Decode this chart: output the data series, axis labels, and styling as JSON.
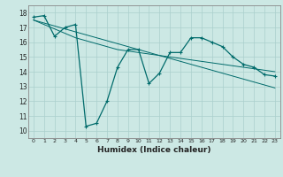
{
  "xlabel": "Humidex (Indice chaleur)",
  "ylabel": "",
  "bg_color": "#cce8e4",
  "grid_color": "#aacfcc",
  "line_color": "#006b6b",
  "xlim": [
    -0.5,
    23.5
  ],
  "ylim": [
    9.5,
    18.5
  ],
  "yticks": [
    10,
    11,
    12,
    13,
    14,
    15,
    16,
    17,
    18
  ],
  "xticks": [
    0,
    1,
    2,
    3,
    4,
    5,
    6,
    7,
    8,
    9,
    10,
    11,
    12,
    13,
    14,
    15,
    16,
    17,
    18,
    19,
    20,
    21,
    22,
    23
  ],
  "series_main": [
    17.7,
    17.8,
    16.4,
    17.0,
    17.2,
    10.3,
    10.5,
    12.0,
    14.3,
    15.5,
    15.5,
    13.2,
    13.9,
    15.3,
    15.3,
    16.3,
    16.3,
    16.0,
    15.7,
    15.0,
    14.5,
    14.3,
    13.8,
    13.7
  ],
  "series_trend1": [
    17.5,
    17.2,
    16.9,
    16.6,
    16.3,
    16.1,
    15.9,
    15.7,
    15.5,
    15.4,
    15.3,
    15.2,
    15.1,
    15.0,
    14.9,
    14.8,
    14.7,
    14.6,
    14.5,
    14.4,
    14.3,
    14.2,
    14.1,
    14.0
  ],
  "series_trend2": [
    17.5,
    17.3,
    17.1,
    16.9,
    16.7,
    16.5,
    16.3,
    16.1,
    15.9,
    15.7,
    15.5,
    15.3,
    15.1,
    14.9,
    14.7,
    14.5,
    14.3,
    14.1,
    13.9,
    13.7,
    13.5,
    13.3,
    13.1,
    12.9
  ]
}
